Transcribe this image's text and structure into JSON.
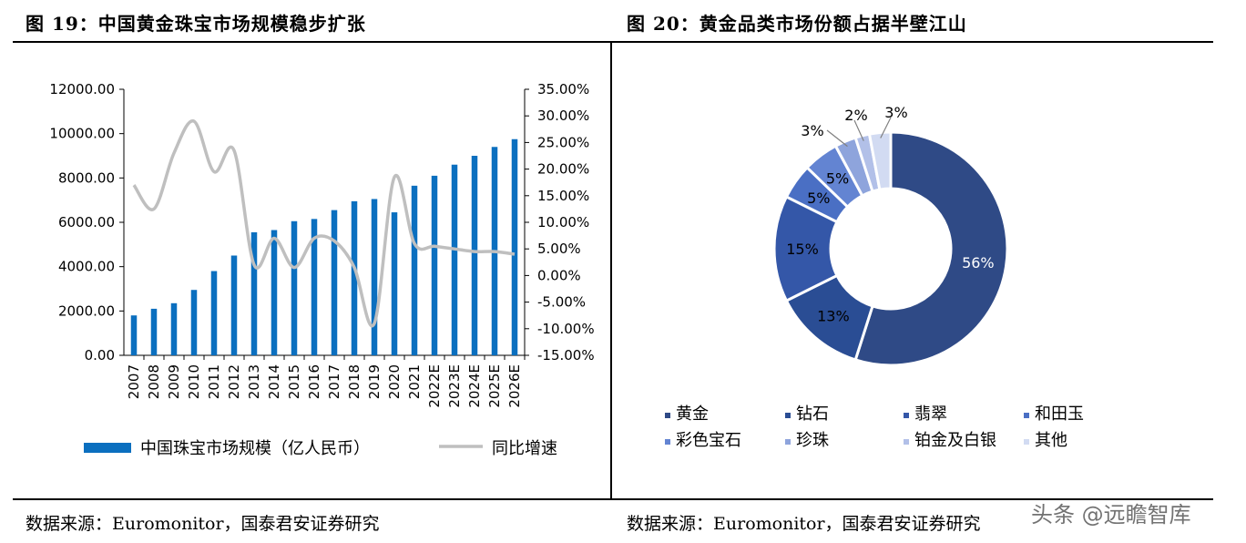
{
  "figure19": {
    "title": "图 19：中国黄金珠宝市场规模稳步扩张",
    "source": "数据来源：Euromonitor，国泰君安证券研究"
  },
  "figure20": {
    "title": "图 20：黄金品类市场份额占据半壁江山",
    "source": "数据来源：Euromonitor，国泰君安证券研究"
  },
  "watermark": "头条 @远瞻智库",
  "chart_data": [
    {
      "type": "bar",
      "categories": [
        "2007",
        "2008",
        "2009",
        "2010",
        "2011",
        "2012",
        "2013",
        "2014",
        "2015",
        "2016",
        "2017",
        "2018",
        "2019",
        "2020",
        "2021",
        "2022E",
        "2023E",
        "2024E",
        "2025E",
        "2026E"
      ],
      "series": [
        {
          "name": "中国珠宝市场规模（亿人民币）",
          "type": "bar",
          "axis": "left",
          "color": "#0b6fbf",
          "values": [
            1800,
            2100,
            2350,
            2950,
            3800,
            4500,
            5550,
            5650,
            6050,
            6150,
            6550,
            6950,
            7050,
            6450,
            7650,
            8100,
            8600,
            9000,
            9400,
            9750
          ]
        },
        {
          "name": "同比增速",
          "type": "line",
          "axis": "right",
          "color": "#bfbfbf",
          "values": [
            0.17,
            0.125,
            0.23,
            0.29,
            0.195,
            0.235,
            0.02,
            0.07,
            0.015,
            0.07,
            0.065,
            0.015,
            -0.09,
            0.185,
            0.06,
            0.055,
            0.05,
            0.045,
            0.045,
            0.04
          ]
        }
      ],
      "y_left": {
        "min": 0,
        "max": 12000,
        "ticks": [
          "0.00",
          "2000.00",
          "4000.00",
          "6000.00",
          "8000.00",
          "10000.00",
          "12000.00"
        ]
      },
      "y_right": {
        "min": -0.15,
        "max": 0.35,
        "ticks": [
          "-15.00%",
          "-10.00%",
          "-5.00%",
          "0.00%",
          "5.00%",
          "10.00%",
          "15.00%",
          "20.00%",
          "25.00%",
          "30.00%",
          "35.00%"
        ]
      },
      "legend_placement": "bottom"
    },
    {
      "type": "pie",
      "donut": true,
      "slices": [
        {
          "name": "黄金",
          "value": 56,
          "label": "56%",
          "color": "#2f4a86"
        },
        {
          "name": "钻石",
          "value": 13,
          "label": "13%",
          "color": "#2a4d94"
        },
        {
          "name": "翡翠",
          "value": 15,
          "label": "15%",
          "color": "#3457a8"
        },
        {
          "name": "和田玉",
          "value": 5,
          "label": "5%",
          "color": "#4a6fc4"
        },
        {
          "name": "彩色宝石",
          "value": 5,
          "label": "5%",
          "color": "#6384d2"
        },
        {
          "name": "珍珠",
          "value": 3,
          "label": "3%",
          "color": "#8ea4dc"
        },
        {
          "name": "铂金及白银",
          "value": 2,
          "label": "2%",
          "color": "#b2c0e8"
        },
        {
          "name": "其他",
          "value": 3,
          "label": "3%",
          "color": "#d2dbf2"
        }
      ],
      "legend_placement": "bottom"
    }
  ]
}
